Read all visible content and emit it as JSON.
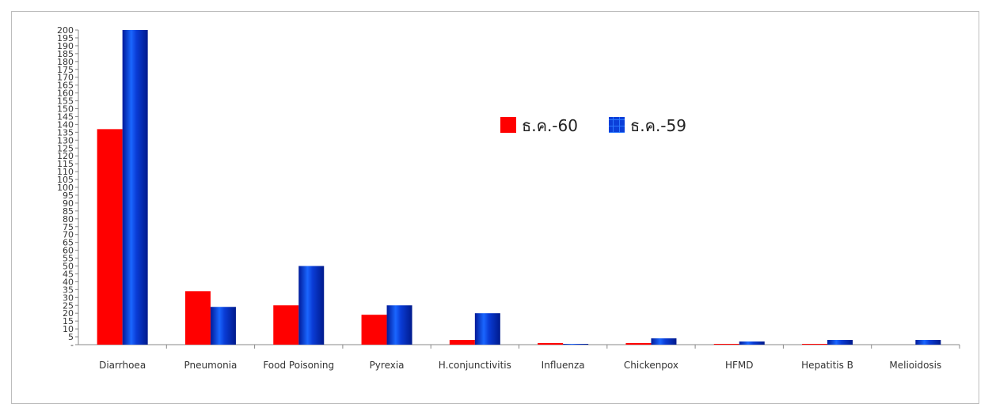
{
  "chart_data": {
    "type": "bar",
    "title": "",
    "xlabel": "",
    "ylabel": "",
    "ylim": [
      0,
      200
    ],
    "ytick_step": 5,
    "zero_tick_label": "-",
    "grid": false,
    "legend_position": "upper-center",
    "categories": [
      "Diarrhoea",
      "Pneumonia",
      "Food Poisoning",
      "Pyrexia",
      "H.conjunctivitis",
      "Influenza",
      "Chickenpox",
      "HFMD",
      "Hepatitis B",
      "Melioidosis"
    ],
    "series": [
      {
        "name": "ธ.ค.-60",
        "color": "#ff0000",
        "values": [
          137,
          34,
          25,
          19,
          3,
          1,
          1,
          0.5,
          0.5,
          0
        ]
      },
      {
        "name": "ธ.ค.-59",
        "color": "#0033cc",
        "values": [
          200,
          24,
          50,
          25,
          20,
          0.5,
          4,
          2,
          3,
          3
        ]
      }
    ]
  }
}
